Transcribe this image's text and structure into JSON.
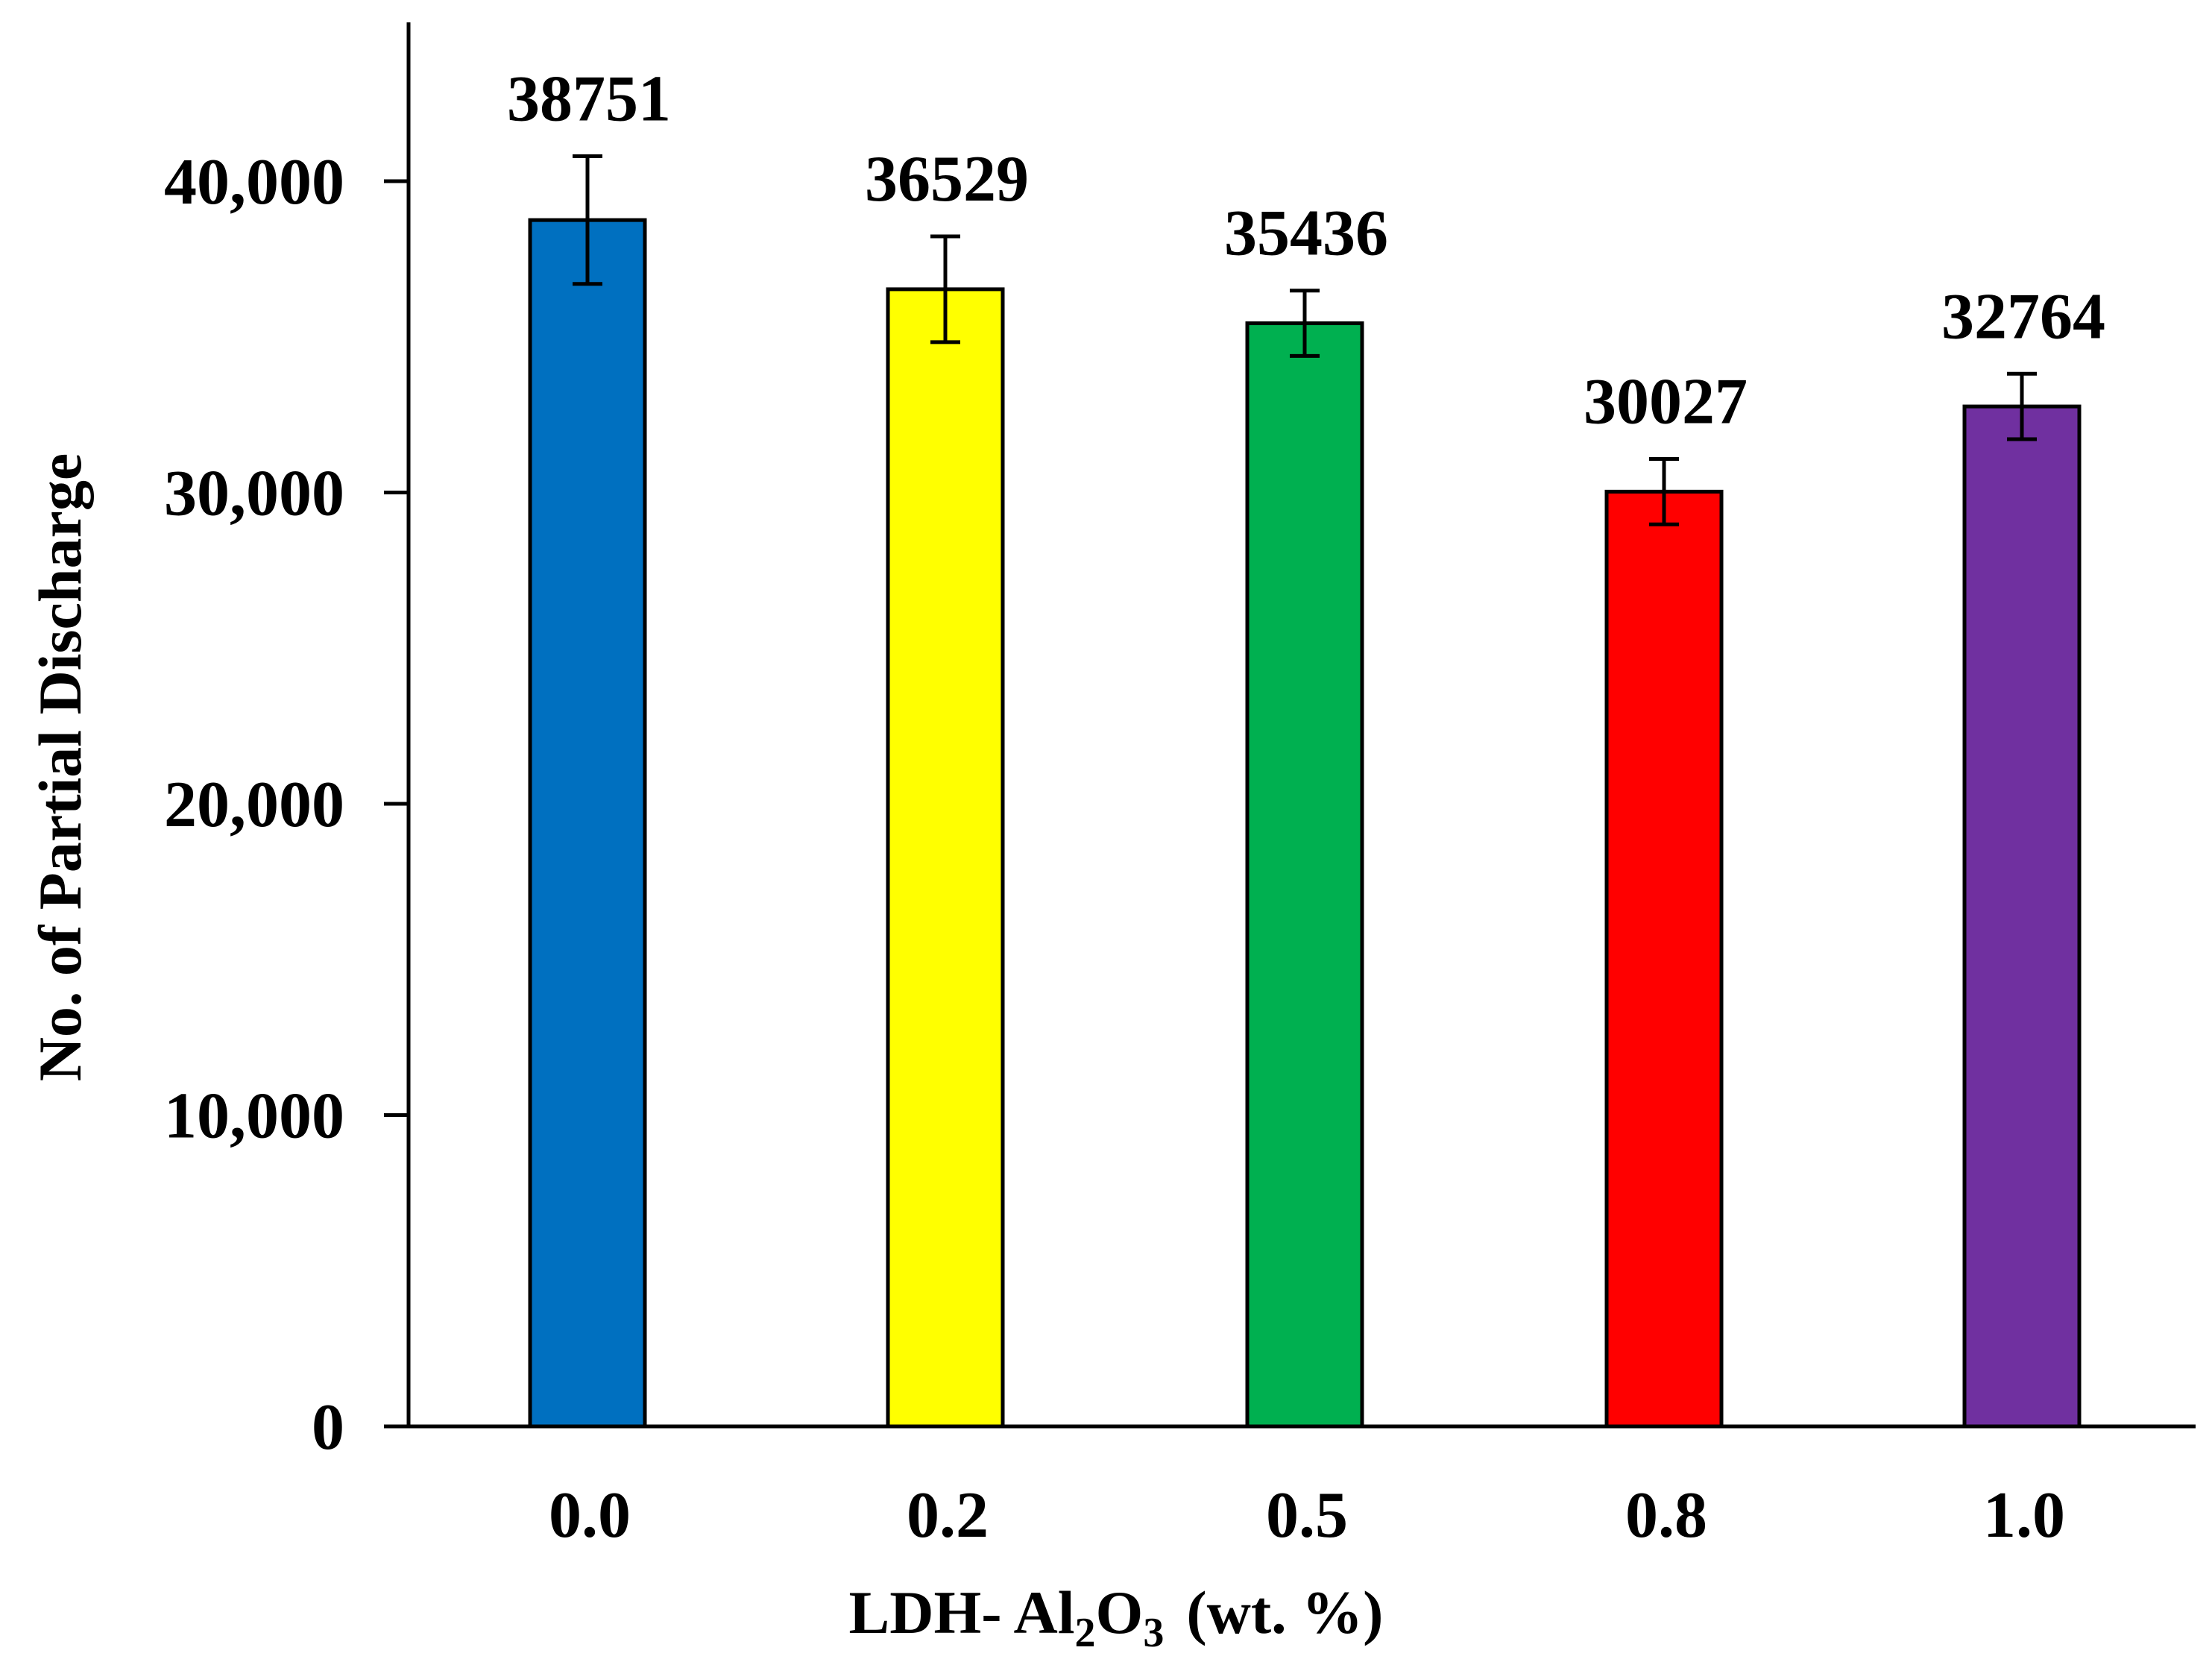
{
  "chart_data": {
    "type": "bar",
    "title": "",
    "xlabel": {
      "prefix": "LDH- Al",
      "sub1": "2",
      "mid": "O",
      "sub2": "3",
      "suffix": "(wt. %)"
    },
    "ylabel": "No. of Partial Discharge",
    "categories": [
      "0.0",
      "0.2",
      "0.5",
      "0.8",
      "1.0"
    ],
    "values": [
      38751,
      36529,
      35436,
      30027,
      32764
    ],
    "data_labels": [
      "38751",
      "36529",
      "35436",
      "30027",
      "32764"
    ],
    "error": [
      2050,
      1700,
      1050,
      1050,
      1050
    ],
    "colors": [
      "#0070C0",
      "#FFFF00",
      "#00B050",
      "#FF0000",
      "#7030A0"
    ],
    "ylim": [
      0,
      45000
    ],
    "yticks": [
      0,
      10000,
      20000,
      30000,
      40000
    ],
    "ytick_labels": [
      "0",
      "10,000",
      "20,000",
      "30,000",
      "40,000"
    ],
    "grid": false,
    "legend": "none"
  }
}
